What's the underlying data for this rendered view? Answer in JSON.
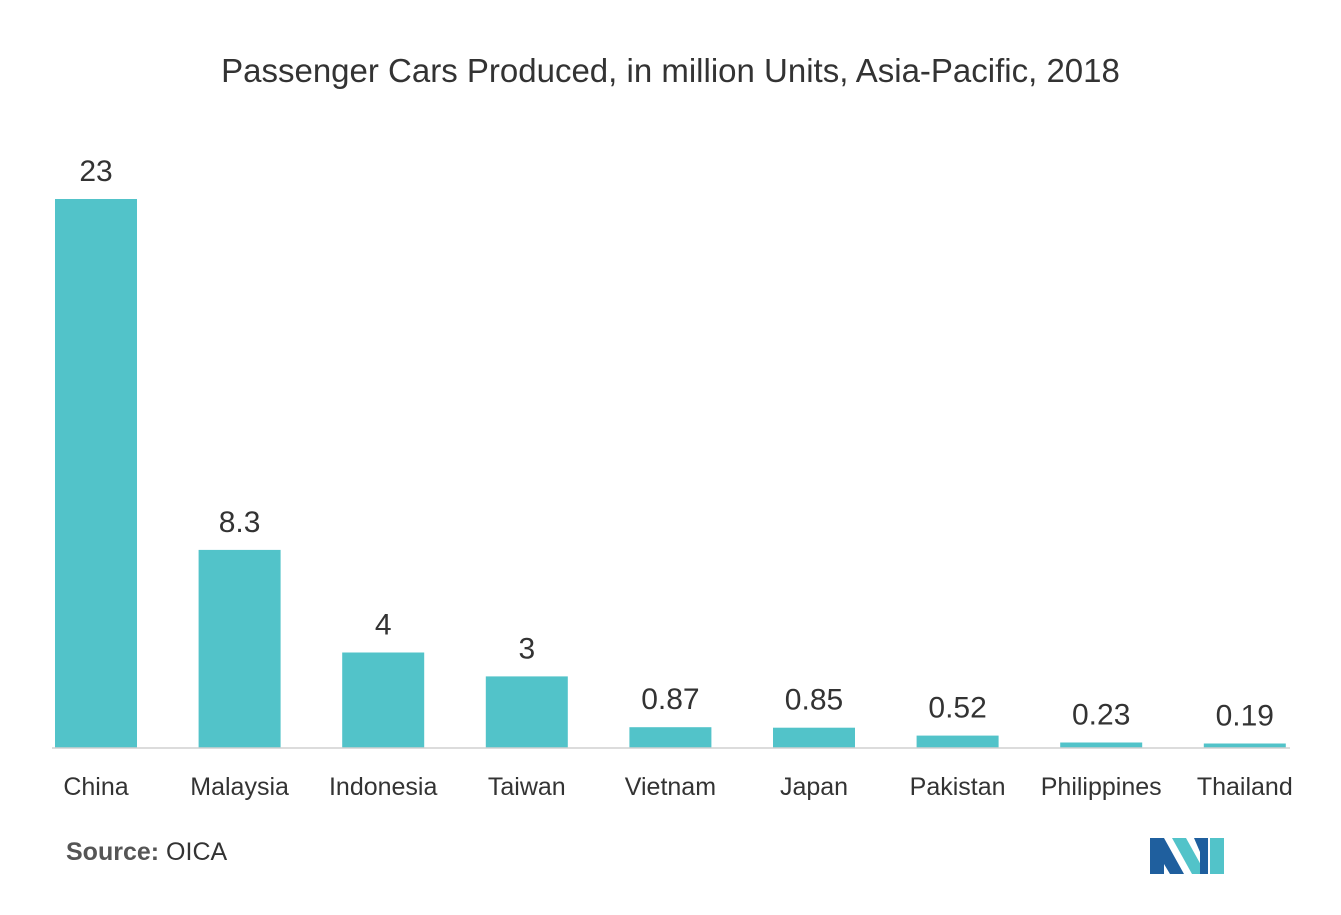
{
  "chart_data": {
    "type": "bar",
    "title": "Passenger Cars Produced, in million Units, Asia-Pacific, 2018",
    "categories": [
      "China",
      "Malaysia",
      "Indonesia",
      "Taiwan",
      "Vietnam",
      "Japan",
      "Pakistan",
      "Philippines",
      "Thailand"
    ],
    "values": [
      23,
      8.3,
      4,
      3,
      0.87,
      0.85,
      0.52,
      0.23,
      0.19
    ],
    "value_labels": [
      "23",
      "8.3",
      "4",
      "3",
      "0.87",
      "0.85",
      "0.52",
      "0.23",
      "0.19"
    ],
    "xlabel": "",
    "ylabel": "",
    "ylim": [
      0,
      23
    ],
    "bar_color": "#52c3c9",
    "grid": false
  },
  "source": {
    "label": "Source:",
    "value": "OICA"
  },
  "logo": {
    "icon": "mordor-intelligence-logo-icon",
    "colors": [
      "#1f5f9e",
      "#52c3c9"
    ]
  }
}
